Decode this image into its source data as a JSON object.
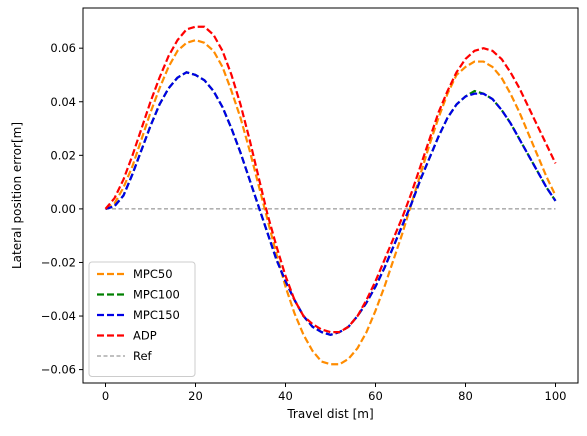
{
  "chart_data": {
    "type": "line",
    "title": "",
    "xlabel": "Travel dist [m]",
    "ylabel": "Lateral position error[m]",
    "xlim": [
      -5,
      105
    ],
    "ylim": [
      -0.065,
      0.075
    ],
    "xticks": [
      0,
      20,
      40,
      60,
      80,
      100
    ],
    "yticks": [
      -0.06,
      -0.04,
      -0.02,
      0.0,
      0.02,
      0.04,
      0.06
    ],
    "xtick_labels": [
      "0",
      "20",
      "40",
      "60",
      "80",
      "100"
    ],
    "ytick_labels": [
      "−0.06",
      "−0.04",
      "−0.02",
      "0.00",
      "0.02",
      "0.04",
      "0.06"
    ],
    "grid": false,
    "legend_position": "lower-left",
    "x": [
      0,
      2,
      4,
      6,
      8,
      10,
      12,
      14,
      16,
      18,
      20,
      22,
      24,
      26,
      28,
      30,
      32,
      34,
      36,
      38,
      40,
      42,
      44,
      46,
      48,
      50,
      52,
      54,
      56,
      58,
      60,
      62,
      64,
      66,
      68,
      70,
      72,
      74,
      76,
      78,
      80,
      82,
      84,
      86,
      88,
      90,
      92,
      94,
      96,
      98,
      100
    ],
    "series": [
      {
        "name": "MPC50",
        "color": "#ff8c00",
        "dash": "dashed",
        "values": [
          0.0,
          0.002,
          0.008,
          0.016,
          0.026,
          0.036,
          0.045,
          0.053,
          0.059,
          0.062,
          0.063,
          0.062,
          0.059,
          0.053,
          0.044,
          0.034,
          0.022,
          0.009,
          -0.004,
          -0.017,
          -0.029,
          -0.039,
          -0.047,
          -0.053,
          -0.057,
          -0.058,
          -0.058,
          -0.056,
          -0.052,
          -0.046,
          -0.038,
          -0.029,
          -0.019,
          -0.009,
          0.002,
          0.013,
          0.024,
          0.034,
          0.043,
          0.05,
          0.053,
          0.055,
          0.055,
          0.053,
          0.049,
          0.043,
          0.036,
          0.028,
          0.02,
          0.012,
          0.005
        ]
      },
      {
        "name": "MPC100",
        "color": "#008000",
        "dash": "dashed",
        "values": [
          0.0,
          0.001,
          0.005,
          0.013,
          0.022,
          0.031,
          0.039,
          0.045,
          0.049,
          0.051,
          0.05,
          0.048,
          0.044,
          0.038,
          0.03,
          0.021,
          0.011,
          0.001,
          -0.009,
          -0.019,
          -0.027,
          -0.034,
          -0.04,
          -0.044,
          -0.046,
          -0.047,
          -0.046,
          -0.044,
          -0.04,
          -0.035,
          -0.029,
          -0.022,
          -0.014,
          -0.006,
          0.002,
          0.011,
          0.019,
          0.027,
          0.034,
          0.039,
          0.042,
          0.044,
          0.043,
          0.041,
          0.037,
          0.032,
          0.026,
          0.02,
          0.014,
          0.008,
          0.003
        ]
      },
      {
        "name": "MPC150",
        "color": "#0000e6",
        "dash": "dashed",
        "values": [
          0.0,
          0.001,
          0.005,
          0.013,
          0.022,
          0.031,
          0.039,
          0.045,
          0.049,
          0.051,
          0.05,
          0.048,
          0.044,
          0.038,
          0.03,
          0.021,
          0.011,
          0.001,
          -0.009,
          -0.019,
          -0.027,
          -0.034,
          -0.04,
          -0.044,
          -0.046,
          -0.047,
          -0.046,
          -0.044,
          -0.04,
          -0.035,
          -0.029,
          -0.022,
          -0.014,
          -0.006,
          0.002,
          0.011,
          0.019,
          0.027,
          0.034,
          0.039,
          0.042,
          0.043,
          0.043,
          0.041,
          0.037,
          0.032,
          0.026,
          0.02,
          0.014,
          0.008,
          0.003
        ]
      },
      {
        "name": "ADP",
        "color": "#ff0000",
        "dash": "dashed",
        "values": [
          0.0,
          0.004,
          0.011,
          0.02,
          0.03,
          0.04,
          0.049,
          0.057,
          0.063,
          0.067,
          0.068,
          0.068,
          0.065,
          0.059,
          0.05,
          0.039,
          0.026,
          0.012,
          -0.002,
          -0.014,
          -0.025,
          -0.034,
          -0.04,
          -0.043,
          -0.045,
          -0.046,
          -0.046,
          -0.044,
          -0.04,
          -0.034,
          -0.027,
          -0.019,
          -0.011,
          -0.003,
          0.006,
          0.016,
          0.026,
          0.036,
          0.044,
          0.051,
          0.056,
          0.059,
          0.06,
          0.059,
          0.056,
          0.051,
          0.045,
          0.038,
          0.031,
          0.024,
          0.017
        ]
      },
      {
        "name": "Ref",
        "color": "#808080",
        "dash": "thin-dashed",
        "values": [
          0,
          0,
          0,
          0,
          0,
          0,
          0,
          0,
          0,
          0,
          0,
          0,
          0,
          0,
          0,
          0,
          0,
          0,
          0,
          0,
          0,
          0,
          0,
          0,
          0,
          0,
          0,
          0,
          0,
          0,
          0,
          0,
          0,
          0,
          0,
          0,
          0,
          0,
          0,
          0,
          0,
          0,
          0,
          0,
          0,
          0,
          0,
          0,
          0,
          0,
          0
        ]
      }
    ]
  }
}
